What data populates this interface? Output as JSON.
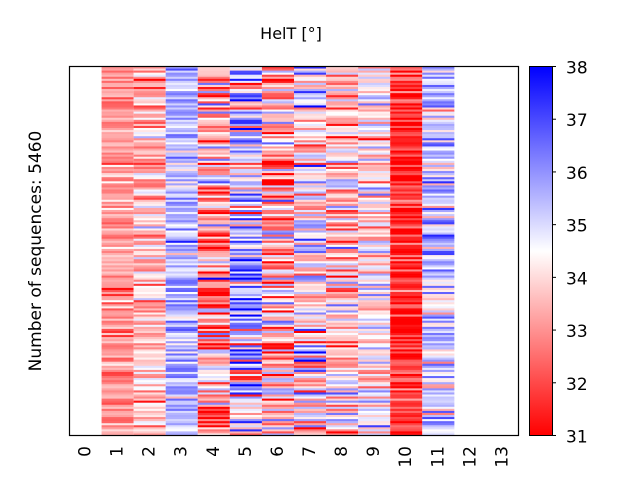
{
  "chart_data": {
    "type": "heatmap",
    "title": "HelT [°]",
    "xlabel": "",
    "ylabel": "Number of sequences: 5460",
    "n_sequences": 5460,
    "x_ticks": [
      "0",
      "1",
      "2",
      "3",
      "4",
      "5",
      "6",
      "7",
      "8",
      "9",
      "10",
      "11",
      "12",
      "13"
    ],
    "xlim": [
      -0.5,
      13.5
    ],
    "grid": false,
    "colormap": {
      "name": "bwr_r",
      "low_color": "#ff0000",
      "mid_color": "#ffffff",
      "high_color": "#0000ff",
      "vmin": 31,
      "vmax": 38,
      "ticks": [
        "31",
        "32",
        "33",
        "34",
        "35",
        "36",
        "37",
        "38"
      ],
      "placement": "right"
    },
    "columns": [
      {
        "position": 1,
        "typical_value": 33.0,
        "spread": 0.6
      },
      {
        "position": 2,
        "typical_value": 33.6,
        "spread": 0.9
      },
      {
        "position": 3,
        "typical_value": 35.6,
        "spread": 0.8
      },
      {
        "position": 4,
        "typical_value": 33.3,
        "spread": 1.7
      },
      {
        "position": 5,
        "typical_value": 35.2,
        "spread": 1.8
      },
      {
        "position": 6,
        "typical_value": 33.5,
        "spread": 1.6
      },
      {
        "position": 7,
        "typical_value": 34.3,
        "spread": 1.5
      },
      {
        "position": 8,
        "typical_value": 33.8,
        "spread": 1.3
      },
      {
        "position": 9,
        "typical_value": 34.3,
        "spread": 1.0
      },
      {
        "position": 10,
        "typical_value": 31.7,
        "spread": 0.9
      },
      {
        "position": 11,
        "typical_value": 35.1,
        "spread": 1.1
      }
    ]
  }
}
